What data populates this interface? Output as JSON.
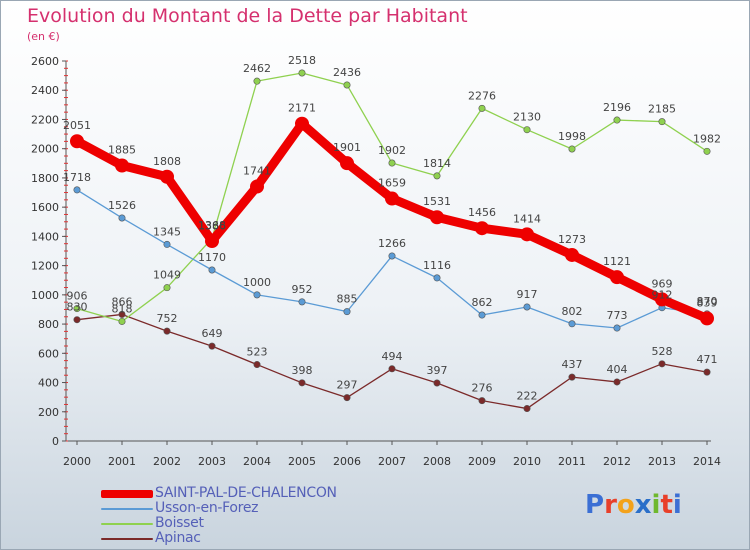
{
  "header": {
    "title": "Evolution du Montant de la Dette par Habitant",
    "subtitle": "(en €)"
  },
  "brand": {
    "letters": [
      "P",
      "r",
      "o",
      "x",
      "i",
      "t",
      "i"
    ],
    "colors": [
      "#3b6fd4",
      "#e8402a",
      "#f3a21b",
      "#2a6fc9",
      "#6fb82e",
      "#e8402a",
      "#3b6fd4"
    ]
  },
  "chart_data": {
    "type": "line",
    "title": "Evolution du Montant de la Dette par Habitant",
    "subtitle": "(en €)",
    "xlabel": "",
    "ylabel": "",
    "x": [
      "2000",
      "2001",
      "2002",
      "2003",
      "2004",
      "2005",
      "2006",
      "2007",
      "2008",
      "2009",
      "2010",
      "2011",
      "2012",
      "2013",
      "2014"
    ],
    "yticks": [
      0,
      200,
      400,
      600,
      800,
      1000,
      1200,
      1400,
      1600,
      1800,
      2000,
      2200,
      2400,
      2600
    ],
    "ylim": [
      0,
      2600
    ],
    "grid": false,
    "legend_position": "bottom-left",
    "series": [
      {
        "name": "SAINT-PAL-DE-CHALENCON",
        "color": "#ee0000",
        "values": [
          2051,
          1885,
          1808,
          1368,
          1741,
          2171,
          1901,
          1659,
          1531,
          1456,
          1414,
          1273,
          1121,
          969,
          839
        ],
        "labels": [
          "2051",
          "1885",
          "1808",
          "1368",
          "1741",
          "2171",
          "1901",
          "1659",
          "1531",
          "1456",
          "1414",
          "1273",
          "1121",
          "969",
          "839"
        ]
      },
      {
        "name": "Usson-en-Forez",
        "color": "#5b9bd5",
        "values": [
          1718,
          1526,
          1345,
          1170,
          1000,
          952,
          885,
          1266,
          1116,
          862,
          917,
          802,
          773,
          912,
          870
        ],
        "labels": [
          "1718",
          "1526",
          "1345",
          "1170",
          "1000",
          "952",
          "885",
          "1266",
          "1116",
          "862",
          "917",
          "802",
          "773",
          "912",
          "870"
        ]
      },
      {
        "name": "Boisset",
        "color": "#8fd14f",
        "values": [
          906,
          818,
          1049,
          1386,
          2462,
          2518,
          2436,
          1902,
          1814,
          2276,
          2130,
          1998,
          2196,
          2185,
          1982
        ],
        "labels": [
          "906",
          "818",
          "1049",
          "1386",
          "2462",
          "2518",
          "2436",
          "1902",
          "1814",
          "2276",
          "2130",
          "1998",
          "2196",
          "2185",
          "1982"
        ]
      },
      {
        "name": "Apinac",
        "color": "#7b2a2a",
        "values": [
          830,
          866,
          752,
          649,
          523,
          398,
          297,
          494,
          397,
          276,
          222,
          437,
          404,
          528,
          471
        ],
        "labels": [
          "830",
          "866",
          "752",
          "649",
          "523",
          "398",
          "297",
          "494",
          "397",
          "276",
          "222",
          "437",
          "404",
          "528",
          "471"
        ]
      }
    ]
  }
}
